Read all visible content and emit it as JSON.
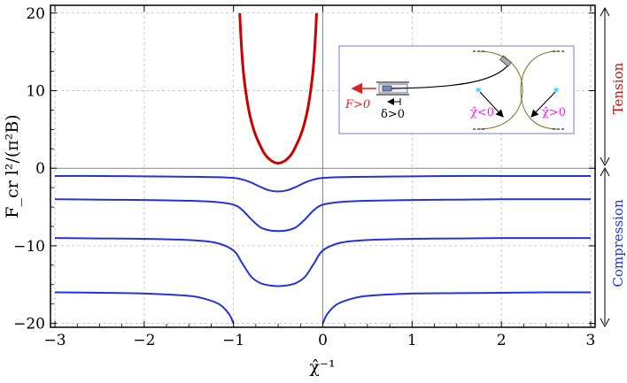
{
  "chart_data": {
    "type": "line",
    "xlabel": "χ̂⁻¹",
    "ylabel": "F_cr l²/(π²B)",
    "xlim": [
      -3.05,
      3.05
    ],
    "ylim": [
      -20.5,
      21
    ],
    "x_ticks": [
      -3,
      -2,
      -1,
      0,
      1,
      2,
      3
    ],
    "y_ticks": [
      -20,
      -10,
      0,
      10,
      20
    ],
    "grid": true,
    "series": [
      {
        "name": "",
        "color": "#cc0000",
        "role": "tension",
        "x": [
          -0.93,
          -0.92,
          -0.9,
          -0.88,
          -0.85,
          -0.82,
          -0.78,
          -0.74,
          -0.7,
          -0.66,
          -0.62,
          -0.58,
          -0.54,
          -0.5,
          -0.46,
          -0.42,
          -0.38,
          -0.34,
          -0.3,
          -0.26,
          -0.22,
          -0.18,
          -0.15,
          -0.12,
          -0.1,
          -0.08,
          -0.07
        ],
        "y": [
          20,
          17.5,
          13.8,
          11.4,
          8.9,
          7.0,
          5.2,
          3.9,
          2.9,
          2.0,
          1.4,
          1.0,
          0.75,
          0.65,
          0.75,
          1.0,
          1.4,
          2.0,
          2.9,
          3.9,
          5.2,
          7.0,
          8.9,
          11.4,
          13.8,
          17.5,
          20
        ]
      },
      {
        "name": "",
        "color": "#2233dd",
        "role": "compression",
        "x": [
          -3,
          -2.5,
          -2,
          -1.5,
          -1.2,
          -1.0,
          -0.9,
          -0.8,
          -0.7,
          -0.6,
          -0.5,
          -0.4,
          -0.3,
          -0.2,
          -0.1,
          0,
          0.2,
          0.5,
          1,
          1.5,
          2,
          2.5,
          3
        ],
        "y": [
          -1.0,
          -1.0,
          -1.05,
          -1.1,
          -1.15,
          -1.25,
          -1.45,
          -1.85,
          -2.4,
          -2.85,
          -3.0,
          -2.85,
          -2.4,
          -1.85,
          -1.45,
          -1.25,
          -1.15,
          -1.1,
          -1.05,
          -1.0,
          -1.0,
          -1.0,
          -1.0
        ]
      },
      {
        "name": "",
        "color": "#2233dd",
        "role": "compression",
        "x": [
          -3,
          -2.5,
          -2,
          -1.5,
          -1.2,
          -1.0,
          -0.9,
          -0.8,
          -0.7,
          -0.6,
          -0.5,
          -0.4,
          -0.3,
          -0.2,
          -0.1,
          0,
          0.2,
          0.5,
          1,
          1.5,
          2,
          2.5,
          3
        ],
        "y": [
          -4.0,
          -4.05,
          -4.1,
          -4.2,
          -4.35,
          -4.7,
          -5.4,
          -6.6,
          -7.6,
          -8.0,
          -8.1,
          -8.0,
          -7.6,
          -6.6,
          -5.4,
          -4.7,
          -4.35,
          -4.2,
          -4.1,
          -4.05,
          -4.0,
          -4.0,
          -4.0
        ]
      },
      {
        "name": "",
        "color": "#2233dd",
        "role": "compression",
        "x": [
          -3,
          -2.5,
          -2,
          -1.5,
          -1.2,
          -1.0,
          -0.9,
          -0.8,
          -0.7,
          -0.6,
          -0.5,
          -0.4,
          -0.3,
          -0.2,
          -0.1,
          0,
          0.2,
          0.5,
          1,
          1.5,
          2,
          2.5,
          3
        ],
        "y": [
          -9.0,
          -9.05,
          -9.1,
          -9.25,
          -9.6,
          -10.6,
          -12.3,
          -14.0,
          -14.8,
          -15.1,
          -15.2,
          -15.1,
          -14.8,
          -14.0,
          -12.3,
          -10.6,
          -9.6,
          -9.25,
          -9.1,
          -9.05,
          -9.0,
          -9.0,
          -9.0
        ]
      },
      {
        "name": "",
        "color": "#2233dd",
        "role": "compression",
        "x": [
          -3,
          -2.5,
          -2,
          -1.5,
          -1.3,
          -1.15,
          -1.05,
          -1.0
        ],
        "y": [
          -16.0,
          -16.05,
          -16.15,
          -16.45,
          -16.9,
          -17.6,
          -18.8,
          -20.0
        ]
      },
      {
        "name": "",
        "color": "#2233dd",
        "role": "compression",
        "x": [
          0.0,
          0.05,
          0.15,
          0.3,
          0.5,
          1.0,
          1.5,
          2.0,
          2.5,
          3.0
        ],
        "y": [
          -20.0,
          -18.8,
          -17.6,
          -16.9,
          -16.45,
          -16.15,
          -16.1,
          -16.05,
          -16.0,
          -16.0
        ]
      }
    ],
    "annotations": {
      "tension": "Tension",
      "compression": "Compression"
    },
    "colors": {
      "tension": "#cc0000",
      "compression": "#2233dd",
      "grid": "#bbbbbb",
      "inset_border": "#9999dd"
    },
    "inset": {
      "force_label": "F>0",
      "displacement_label": "δ>0",
      "chi_negative": "χ̂<0",
      "chi_positive": "χ̂>0"
    }
  }
}
